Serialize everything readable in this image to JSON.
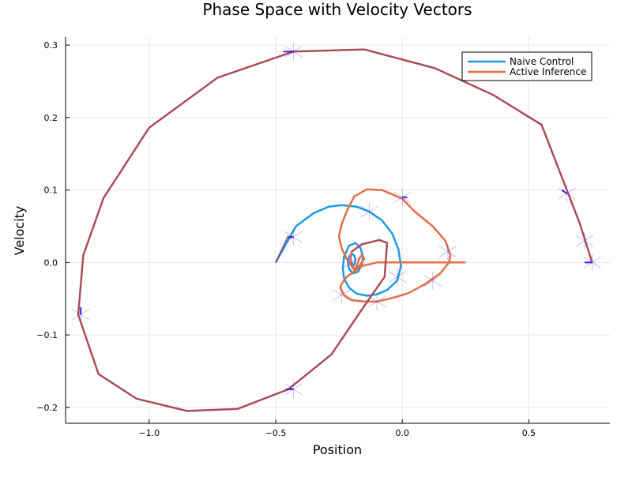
{
  "chart_data": {
    "type": "line",
    "title": "Phase Space with Velocity Vectors",
    "xlabel": "Position",
    "ylabel": "Velocity",
    "xlim": [
      -1.33,
      0.82
    ],
    "ylim": [
      -0.222,
      0.311
    ],
    "xticks": [
      -1.0,
      -0.5,
      0.0,
      0.5
    ],
    "xtick_labels": [
      "−1.0",
      "−0.5",
      "0.0",
      "0.5"
    ],
    "yticks": [
      -0.2,
      -0.1,
      0.0,
      0.1,
      0.2,
      0.3
    ],
    "ytick_labels": [
      "−0.2",
      "−0.1",
      "0.0",
      "0.1",
      "0.2",
      "0.3"
    ],
    "grid": true,
    "legend_position": "top-right",
    "series": [
      {
        "name": "Naive Control",
        "color": "#1f9ae6",
        "x": [
          -0.5,
          -0.46,
          -0.42,
          -0.35,
          -0.29,
          -0.24,
          -0.18,
          -0.13,
          -0.08,
          -0.04,
          -0.015,
          -0.005,
          -0.02,
          -0.06,
          -0.1,
          -0.14,
          -0.18,
          -0.21,
          -0.23,
          -0.235,
          -0.23,
          -0.21,
          -0.185,
          -0.165,
          -0.155,
          -0.16,
          -0.175,
          -0.195,
          -0.21,
          -0.215,
          -0.21,
          -0.2,
          -0.19,
          -0.185,
          -0.188,
          -0.195,
          -0.2,
          -0.198
        ],
        "y": [
          0.0,
          0.025,
          0.05,
          0.068,
          0.077,
          0.079,
          0.077,
          0.07,
          0.058,
          0.04,
          0.018,
          -0.005,
          -0.025,
          -0.038,
          -0.044,
          -0.046,
          -0.043,
          -0.035,
          -0.022,
          -0.008,
          0.008,
          0.023,
          0.027,
          0.02,
          0.008,
          -0.004,
          -0.013,
          -0.015,
          -0.009,
          0.0,
          0.008,
          0.012,
          0.01,
          0.004,
          -0.002,
          -0.005,
          -0.003,
          0.0
        ]
      },
      {
        "name": "Active Inference",
        "color": "#e26f46",
        "x": [
          0.75,
          0.7,
          0.55,
          0.36,
          0.13,
          -0.15,
          -0.43,
          -0.73,
          -1.0,
          -1.18,
          -1.26,
          -1.28,
          -1.2,
          -1.05,
          -0.85,
          -0.65,
          -0.45,
          -0.28,
          -0.15,
          -0.07,
          -0.06,
          -0.09,
          -0.16,
          -0.2,
          -0.205,
          -0.2,
          -0.19,
          -0.18,
          -0.17,
          -0.16,
          -0.15,
          -0.18,
          -0.22,
          -0.24,
          -0.245,
          -0.23,
          -0.2,
          -0.15,
          -0.1,
          -0.05,
          0.02,
          0.09,
          0.15,
          0.185,
          0.19,
          0.17,
          0.12,
          0.05,
          0.0,
          -0.08,
          -0.14,
          -0.19,
          -0.22,
          -0.24,
          -0.25,
          -0.24,
          -0.22,
          -0.2,
          -0.18,
          -0.16,
          -0.1,
          -0.02,
          0.06,
          0.13,
          0.19,
          0.22,
          0.25
        ],
        "y": [
          0.0,
          0.055,
          0.19,
          0.231,
          0.268,
          0.294,
          0.291,
          0.255,
          0.186,
          0.089,
          0.01,
          -0.072,
          -0.154,
          -0.188,
          -0.205,
          -0.202,
          -0.175,
          -0.127,
          -0.06,
          -0.02,
          0.027,
          0.031,
          0.025,
          0.015,
          0.005,
          -0.005,
          -0.01,
          -0.005,
          0.005,
          0.01,
          0.005,
          -0.01,
          -0.02,
          -0.03,
          -0.035,
          -0.045,
          -0.052,
          -0.054,
          -0.054,
          -0.05,
          -0.043,
          -0.03,
          -0.015,
          0.0,
          0.01,
          0.03,
          0.05,
          0.07,
          0.088,
          0.1,
          0.101,
          0.091,
          0.07,
          0.052,
          0.036,
          0.02,
          0.005,
          -0.005,
          -0.01,
          -0.005,
          0.0,
          0.0,
          0.0,
          0.0,
          0.0,
          0.0,
          0.0
        ]
      }
    ],
    "overlay": {
      "color": "#8b3a6b",
      "x": [
        -0.5,
        -0.45,
        0.75,
        0.7,
        0.55,
        0.36,
        0.13,
        -0.15,
        -0.43,
        -0.73,
        -1.0,
        -1.18,
        -1.26,
        -1.28,
        -1.2,
        -1.05,
        -0.85,
        -0.65,
        -0.45,
        -0.28,
        -0.15,
        -0.07,
        -0.06,
        -0.09,
        -0.16,
        -0.2
      ],
      "y": [
        0.0,
        0.037,
        0.0,
        0.055,
        0.19,
        0.231,
        0.268,
        0.294,
        0.291,
        0.255,
        0.186,
        0.089,
        0.01,
        -0.072,
        -0.154,
        -0.188,
        -0.205,
        -0.202,
        -0.175,
        -0.127,
        -0.06,
        -0.02,
        0.027,
        0.031,
        0.025,
        0.015
      ]
    },
    "vectors": {
      "color": "#5a48d8",
      "points": [
        [
          0.75,
          0.0,
          -0.03,
          0.0
        ],
        [
          0.72,
          0.03,
          0.0,
          0.0
        ],
        [
          0.65,
          0.095,
          -0.02,
          0.005
        ],
        [
          -0.43,
          0.291,
          -0.04,
          0.0
        ],
        [
          -1.27,
          -0.072,
          0.0,
          0.01
        ],
        [
          -0.43,
          -0.175,
          -0.03,
          0.0
        ],
        [
          -0.43,
          0.035,
          -0.02,
          0.0
        ],
        [
          -0.13,
          0.07,
          0.0,
          0.0
        ],
        [
          0.0,
          0.09,
          0.02,
          0.0
        ],
        [
          0.18,
          0.015,
          0.0,
          0.0
        ],
        [
          0.12,
          -0.025,
          0.0,
          0.0
        ],
        [
          -0.02,
          -0.02,
          0.0,
          0.0
        ],
        [
          -0.1,
          -0.054,
          0.0,
          0.0
        ],
        [
          -0.24,
          -0.045,
          0.0,
          0.0
        ],
        [
          -0.2,
          0.0,
          0.0,
          0.0
        ]
      ]
    }
  }
}
